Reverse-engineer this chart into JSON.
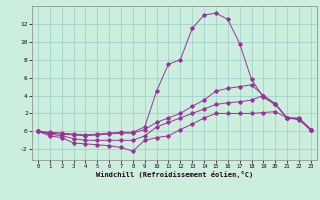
{
  "xlabel": "Windchill (Refroidissement éolien,°C)",
  "bg_color": "#cceedd",
  "grid_color": "#99cccc",
  "line_color": "#993399",
  "xlim": [
    -0.5,
    23.5
  ],
  "ylim": [
    -3.2,
    14.0
  ],
  "xticks": [
    0,
    1,
    2,
    3,
    4,
    5,
    6,
    7,
    8,
    9,
    10,
    11,
    12,
    13,
    14,
    15,
    16,
    17,
    18,
    19,
    20,
    21,
    22,
    23
  ],
  "yticks": [
    -2,
    0,
    2,
    4,
    6,
    8,
    10,
    12
  ],
  "series": [
    [
      0,
      -0.5,
      -0.7,
      -1.3,
      -1.4,
      -1.5,
      -1.6,
      -1.8,
      -2.2,
      -1.0,
      -0.7,
      -0.5,
      0.2,
      0.8,
      1.5,
      2.0,
      2.0,
      2.0,
      2.0,
      2.1,
      2.2,
      1.5,
      1.3,
      0.1
    ],
    [
      0,
      -0.3,
      -0.5,
      -0.8,
      -1.0,
      -1.0,
      -1.0,
      -1.0,
      -1.0,
      -0.5,
      0.5,
      1.0,
      1.5,
      2.0,
      2.5,
      3.0,
      3.2,
      3.3,
      3.5,
      4.0,
      3.0,
      1.5,
      1.5,
      0.2
    ],
    [
      0,
      -0.2,
      -0.3,
      -0.4,
      -0.5,
      -0.4,
      -0.3,
      -0.2,
      -0.2,
      0.2,
      1.0,
      1.5,
      2.0,
      2.8,
      3.5,
      4.5,
      4.8,
      5.0,
      5.2,
      4.0,
      3.1,
      1.5,
      1.4,
      0.2
    ],
    [
      0,
      -0.1,
      -0.2,
      -0.3,
      -0.4,
      -0.3,
      -0.2,
      -0.1,
      -0.1,
      0.5,
      4.5,
      7.5,
      8.0,
      11.5,
      13.0,
      13.2,
      12.5,
      9.8,
      5.8,
      3.8,
      3.0,
      1.5,
      1.4,
      0.2
    ]
  ]
}
